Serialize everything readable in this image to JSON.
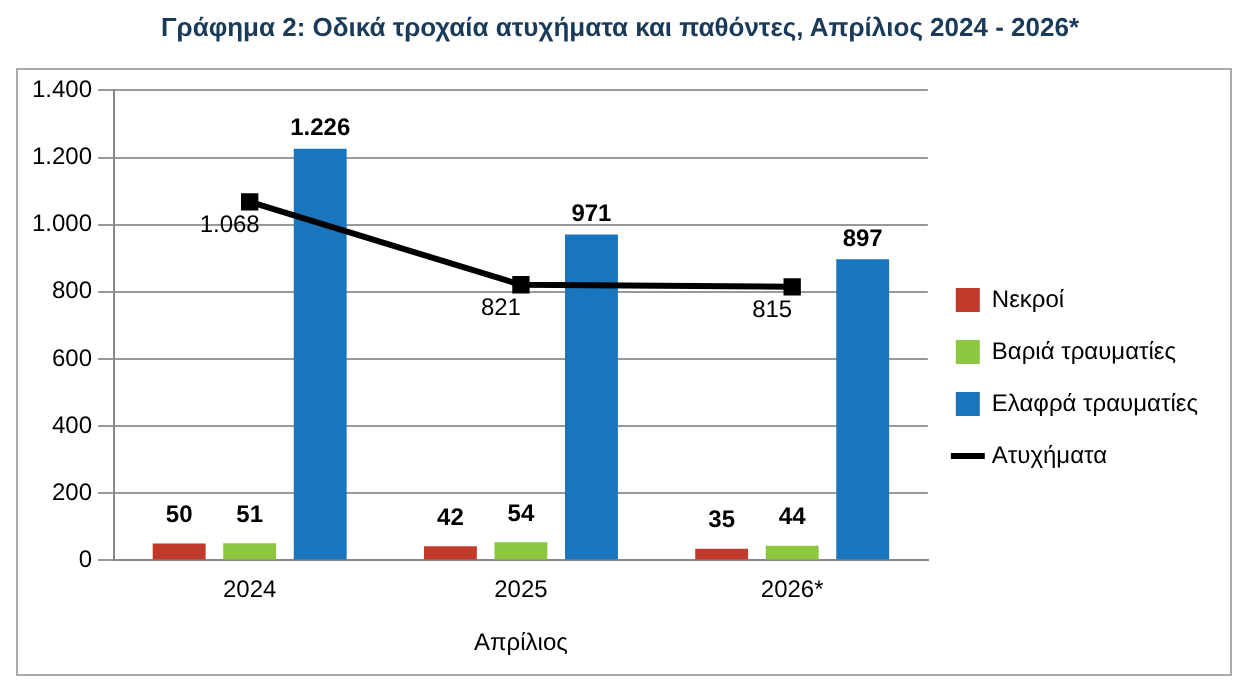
{
  "chart_data": {
    "type": "bar",
    "title": "Γράφημα 2: Οδικά τροχαία ατυχήματα και παθόντες, Απρίλιος 2024 - 2026*",
    "xlabel": "Απρίλιος",
    "categories": [
      "2024",
      "2025",
      "2026*"
    ],
    "series": [
      {
        "name": "Νεκροί",
        "color": "#c0392b",
        "values": [
          50,
          42,
          35
        ],
        "value_labels": [
          "50",
          "42",
          "35"
        ]
      },
      {
        "name": "Βαριά τραυματίες",
        "color": "#8dc63f",
        "values": [
          51,
          54,
          44
        ],
        "value_labels": [
          "51",
          "54",
          "44"
        ]
      },
      {
        "name": "Ελαφρά τραυματίες",
        "color": "#1b75bc",
        "values": [
          1226,
          971,
          897
        ],
        "value_labels": [
          "1.226",
          "971",
          "897"
        ]
      },
      {
        "name": "Ατυχήματα",
        "type": "line",
        "color": "#000000",
        "marker": "square",
        "values": [
          1068,
          821,
          815
        ],
        "value_labels": [
          "1.068",
          "821",
          "815"
        ]
      }
    ],
    "ylim": [
      0,
      1400
    ],
    "yticks": [
      0,
      200,
      400,
      600,
      800,
      {
        "value": 1000,
        "label": "1.000"
      },
      {
        "value": 1200,
        "label": "1.200"
      },
      {
        "value": 1400,
        "label": "1.400"
      }
    ],
    "grid": "y",
    "legend": "right"
  }
}
